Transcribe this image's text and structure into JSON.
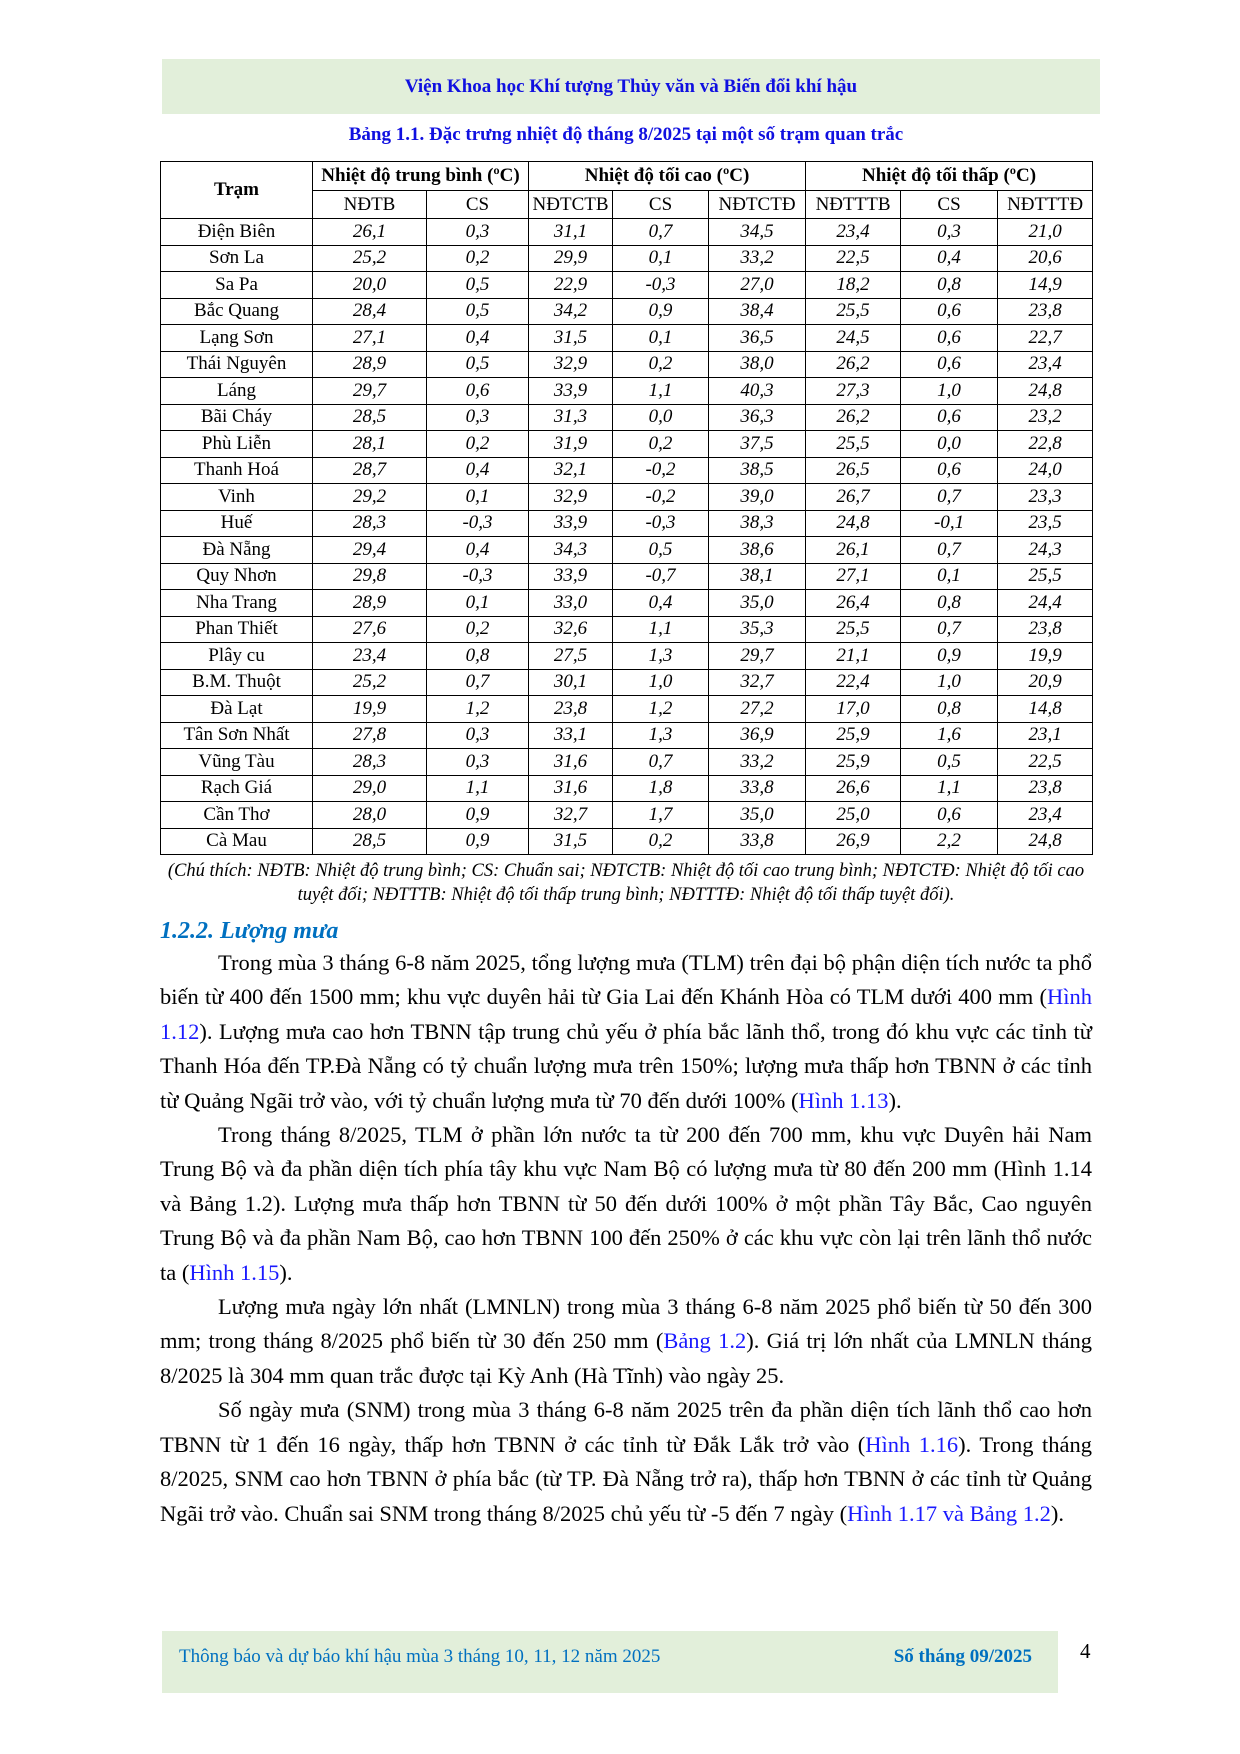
{
  "header": {
    "institute": "Viện Khoa học Khí tượng Thủy văn và Biến đổi khí hậu"
  },
  "table": {
    "caption": "Bảng 1.1. Đặc trưng nhiệt độ tháng 8/2025 tại một số trạm quan trắc",
    "station_header": "Trạm",
    "groups": [
      "Nhiệt độ trung bình (ºC)",
      "Nhiệt độ tối cao (ºC)",
      "Nhiệt độ tối thấp (ºC)"
    ],
    "columns": [
      "NĐTB",
      "CS",
      "NĐTCTB",
      "CS",
      "NĐTCTĐ",
      "NĐTTTB",
      "CS",
      "NĐTTTĐ"
    ],
    "rows": [
      [
        "Điện Biên",
        "26,1",
        "0,3",
        "31,1",
        "0,7",
        "34,5",
        "23,4",
        "0,3",
        "21,0"
      ],
      [
        "Sơn La",
        "25,2",
        "0,2",
        "29,9",
        "0,1",
        "33,2",
        "22,5",
        "0,4",
        "20,6"
      ],
      [
        "Sa Pa",
        "20,0",
        "0,5",
        "22,9",
        "-0,3",
        "27,0",
        "18,2",
        "0,8",
        "14,9"
      ],
      [
        "Bắc Quang",
        "28,4",
        "0,5",
        "34,2",
        "0,9",
        "38,4",
        "25,5",
        "0,6",
        "23,8"
      ],
      [
        "Lạng Sơn",
        "27,1",
        "0,4",
        "31,5",
        "0,1",
        "36,5",
        "24,5",
        "0,6",
        "22,7"
      ],
      [
        "Thái Nguyên",
        "28,9",
        "0,5",
        "32,9",
        "0,2",
        "38,0",
        "26,2",
        "0,6",
        "23,4"
      ],
      [
        "Láng",
        "29,7",
        "0,6",
        "33,9",
        "1,1",
        "40,3",
        "27,3",
        "1,0",
        "24,8"
      ],
      [
        "Bãi Cháy",
        "28,5",
        "0,3",
        "31,3",
        "0,0",
        "36,3",
        "26,2",
        "0,6",
        "23,2"
      ],
      [
        "Phù Liễn",
        "28,1",
        "0,2",
        "31,9",
        "0,2",
        "37,5",
        "25,5",
        "0,0",
        "22,8"
      ],
      [
        "Thanh Hoá",
        "28,7",
        "0,4",
        "32,1",
        "-0,2",
        "38,5",
        "26,5",
        "0,6",
        "24,0"
      ],
      [
        "Vinh",
        "29,2",
        "0,1",
        "32,9",
        "-0,2",
        "39,0",
        "26,7",
        "0,7",
        "23,3"
      ],
      [
        "Huế",
        "28,3",
        "-0,3",
        "33,9",
        "-0,3",
        "38,3",
        "24,8",
        "-0,1",
        "23,5"
      ],
      [
        "Đà Nẵng",
        "29,4",
        "0,4",
        "34,3",
        "0,5",
        "38,6",
        "26,1",
        "0,7",
        "24,3"
      ],
      [
        "Quy Nhơn",
        "29,8",
        "-0,3",
        "33,9",
        "-0,7",
        "38,1",
        "27,1",
        "0,1",
        "25,5"
      ],
      [
        "Nha Trang",
        "28,9",
        "0,1",
        "33,0",
        "0,4",
        "35,0",
        "26,4",
        "0,8",
        "24,4"
      ],
      [
        "Phan Thiết",
        "27,6",
        "0,2",
        "32,6",
        "1,1",
        "35,3",
        "25,5",
        "0,7",
        "23,8"
      ],
      [
        "Plây cu",
        "23,4",
        "0,8",
        "27,5",
        "1,3",
        "29,7",
        "21,1",
        "0,9",
        "19,9"
      ],
      [
        "B.M. Thuột",
        "25,2",
        "0,7",
        "30,1",
        "1,0",
        "32,7",
        "22,4",
        "1,0",
        "20,9"
      ],
      [
        "Đà Lạt",
        "19,9",
        "1,2",
        "23,8",
        "1,2",
        "27,2",
        "17,0",
        "0,8",
        "14,8"
      ],
      [
        "Tân Sơn Nhất",
        "27,8",
        "0,3",
        "33,1",
        "1,3",
        "36,9",
        "25,9",
        "1,6",
        "23,1"
      ],
      [
        "Vũng Tàu",
        "28,3",
        "0,3",
        "31,6",
        "0,7",
        "33,2",
        "25,9",
        "0,5",
        "22,5"
      ],
      [
        "Rạch Giá",
        "29,0",
        "1,1",
        "31,6",
        "1,8",
        "33,8",
        "26,6",
        "1,1",
        "23,8"
      ],
      [
        "Cần Thơ",
        "28,0",
        "0,9",
        "32,7",
        "1,7",
        "35,0",
        "25,0",
        "0,6",
        "23,4"
      ],
      [
        "Cà Mau",
        "28,5",
        "0,9",
        "31,5",
        "0,2",
        "33,8",
        "26,9",
        "2,2",
        "24,8"
      ]
    ],
    "note": "(Chú thích: NĐTB: Nhiệt độ trung bình; CS: Chuẩn sai; NĐTCTB: Nhiệt độ tối cao trung bình; NĐTCTĐ: Nhiệt độ tối cao tuyệt đối; NĐTTTB: Nhiệt độ tối thấp trung bình; NĐTTTĐ: Nhiệt độ tối thấp tuyệt đối)."
  },
  "section": {
    "heading": "1.2.2. Lượng mưa",
    "paragraphs": [
      [
        {
          "text": "Trong mùa 3 tháng 6-8 năm 2025, tổng lượng mưa (TLM) trên đại bộ phận diện tích nước ta phổ biến từ 400 đến 1500 mm; khu vực duyên hải từ Gia Lai đến Khánh Hòa có TLM dưới 400 mm ("
        },
        {
          "text": "Hình 1.12",
          "link": true
        },
        {
          "text": "). Lượng mưa cao hơn TBNN tập trung chủ yếu ở phía bắc lãnh thổ, trong đó khu vực các tỉnh từ Thanh Hóa đến TP.Đà Nẵng có tỷ chuẩn lượng mưa trên 150%; lượng mưa thấp hơn TBNN ở các tỉnh từ Quảng Ngãi trở vào, với tỷ chuẩn lượng mưa từ 70 đến dưới 100% ("
        },
        {
          "text": "Hình 1.13",
          "link": true
        },
        {
          "text": ")."
        }
      ],
      [
        {
          "text": "Trong tháng 8/2025, TLM ở phần lớn nước ta từ 200 đến 700 mm, khu vực Duyên hải Nam Trung Bộ và đa phần diện tích phía tây khu vực Nam Bộ có lượng mưa từ 80 đến 200 mm (Hình 1.14 và Bảng 1.2). Lượng mưa thấp hơn TBNN từ 50 đến dưới 100% ở một phần Tây Bắc, Cao nguyên Trung Bộ và đa phần Nam Bộ, cao hơn TBNN 100 đến 250% ở các khu vực còn lại trên lãnh thổ nước ta ("
        },
        {
          "text": "Hình 1.15",
          "link": true
        },
        {
          "text": ")."
        }
      ],
      [
        {
          "text": "Lượng mưa ngày lớn nhất (LMNLN) trong mùa 3 tháng 6-8 năm 2025 phổ biến từ 50 đến 300 mm; trong tháng 8/2025 phổ biến từ 30 đến 250 mm ("
        },
        {
          "text": "Bảng 1.2",
          "link": true
        },
        {
          "text": "). Giá trị lớn nhất của LMNLN tháng 8/2025 là 304 mm quan trắc được tại Kỳ Anh (Hà Tĩnh) vào ngày 25."
        }
      ],
      [
        {
          "text": "Số ngày mưa (SNM) trong mùa 3 tháng 6-8 năm 2025 trên đa phần diện tích lãnh thổ cao hơn TBNN từ 1 đến 16 ngày, thấp hơn TBNN ở các tỉnh từ Đắk Lắk trở vào ("
        },
        {
          "text": "Hình 1.16",
          "link": true
        },
        {
          "text": "). Trong tháng 8/2025, SNM cao hơn TBNN ở phía bắc (từ TP. Đà Nẵng trở ra), thấp hơn TBNN ở các tỉnh từ Quảng Ngãi trở vào. Chuẩn sai SNM trong tháng 8/2025 chủ yếu từ -5 đến 7 ngày ("
        },
        {
          "text": "Hình 1.17 và Bảng 1.2",
          "link": true
        },
        {
          "text": ")."
        }
      ]
    ]
  },
  "footer": {
    "publication": "Thông báo và dự báo khí hậu mùa 3 tháng 10, 11, 12 năm 2025",
    "issue": "Số tháng 09/2025",
    "page_number": "4"
  },
  "colors": {
    "band": "#e2efda",
    "title_blue": "#1010e0",
    "heading_blue": "#0070c0",
    "link_blue": "#1a1aff"
  }
}
